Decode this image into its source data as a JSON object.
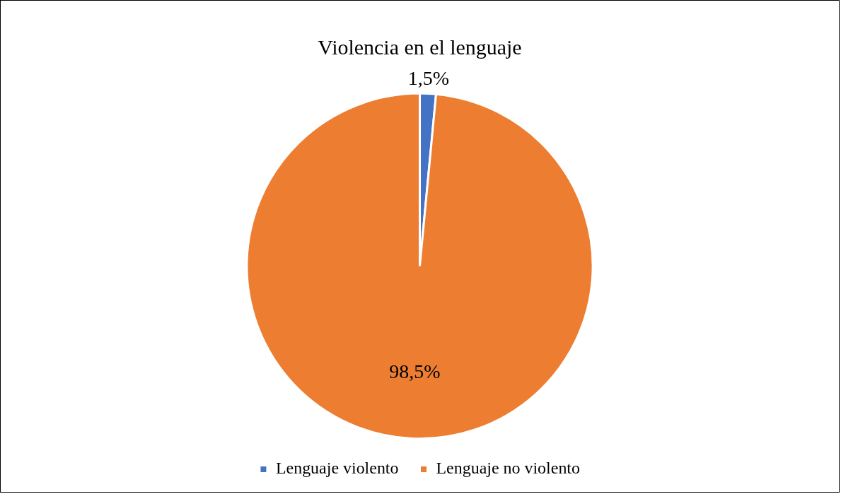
{
  "chart_data": {
    "type": "pie",
    "title": "Violencia en el lenguaje",
    "categories": [
      "Lenguaje violento",
      "Lenguaje no violento"
    ],
    "values": [
      1.5,
      98.5
    ],
    "colors": [
      "#4472c4",
      "#ed7d31"
    ],
    "value_labels": [
      "1,5%",
      "98,5%"
    ],
    "legend": "bottom"
  }
}
